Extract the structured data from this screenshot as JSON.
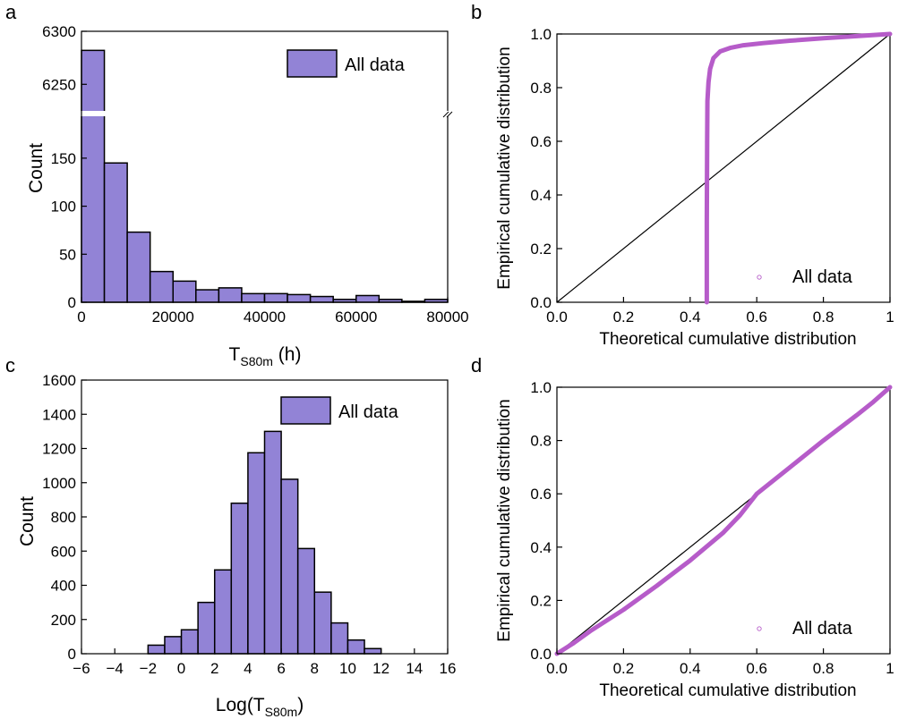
{
  "colors": {
    "bar_fill": "#9283d6",
    "bar_stroke": "#000000",
    "point": "#b65cc9",
    "axis": "#000000"
  },
  "chart_data": [
    {
      "panel": "a",
      "type": "bar",
      "xlabel": "T",
      "xlabel_sub": "S80m",
      "xlabel_unit": " (h)",
      "ylabel": "Count",
      "legend": "All data",
      "legend_position": "top-right",
      "x_ticks": [
        "0",
        "20000",
        "40000",
        "60000",
        "80000"
      ],
      "y_ticks_lower": [
        "0",
        "50",
        "100",
        "150"
      ],
      "y_ticks_upper": [
        "6250",
        "6300"
      ],
      "xlim": [
        0,
        80000
      ],
      "ylim_lower": [
        0,
        175
      ],
      "ylim_upper": [
        6230,
        6300
      ],
      "broken_axis": true,
      "bin_width": 5000,
      "bins_start": [
        0,
        5000,
        10000,
        15000,
        20000,
        25000,
        30000,
        35000,
        40000,
        45000,
        50000,
        55000,
        60000,
        65000,
        70000,
        75000
      ],
      "values": [
        6282,
        145,
        73,
        32,
        22,
        13,
        15,
        9,
        9,
        8,
        6,
        3,
        7,
        3,
        1,
        3
      ]
    },
    {
      "panel": "b",
      "type": "scatter",
      "xlabel": "Theoretical cumulative distribution",
      "ylabel": "Empirical cumulative distribution",
      "legend": "All data",
      "legend_position": "bottom-right",
      "xlim": [
        0,
        1
      ],
      "ylim": [
        0,
        1
      ],
      "x_ticks": [
        "0.0",
        "0.2",
        "0.4",
        "0.6",
        "0.8",
        "1"
      ],
      "y_ticks": [
        "0.0",
        "0.2",
        "0.4",
        "0.6",
        "0.8",
        "1.0"
      ],
      "reference_line": [
        [
          0,
          0
        ],
        [
          1,
          1
        ]
      ],
      "curve": [
        [
          0.45,
          0.0
        ],
        [
          0.45,
          0.3
        ],
        [
          0.451,
          0.6
        ],
        [
          0.452,
          0.75
        ],
        [
          0.455,
          0.82
        ],
        [
          0.46,
          0.87
        ],
        [
          0.47,
          0.91
        ],
        [
          0.49,
          0.935
        ],
        [
          0.52,
          0.948
        ],
        [
          0.56,
          0.958
        ],
        [
          0.62,
          0.966
        ],
        [
          0.7,
          0.975
        ],
        [
          0.8,
          0.984
        ],
        [
          0.9,
          0.992
        ],
        [
          1.0,
          1.0
        ]
      ]
    },
    {
      "panel": "c",
      "type": "bar",
      "xlabel": "Log(T",
      "xlabel_sub": "S80m",
      "xlabel_unit": ")",
      "ylabel": "Count",
      "legend": "All data",
      "legend_position": "top-right",
      "xlim": [
        -6,
        16
      ],
      "ylim": [
        0,
        1600
      ],
      "x_ticks": [
        "−6",
        "−4",
        "−2",
        "0",
        "2",
        "4",
        "6",
        "8",
        "10",
        "12",
        "14",
        "16"
      ],
      "y_ticks": [
        "0",
        "200",
        "400",
        "600",
        "800",
        "1000",
        "1200",
        "1400",
        "1600"
      ],
      "bin_width": 1,
      "bins_start": [
        -2,
        -1,
        0,
        1,
        2,
        3,
        4,
        5,
        6,
        7,
        8,
        9,
        10,
        11
      ],
      "values": [
        50,
        100,
        140,
        300,
        490,
        880,
        1175,
        1300,
        1020,
        615,
        360,
        180,
        80,
        30
      ]
    },
    {
      "panel": "d",
      "type": "scatter",
      "xlabel": "Theoretical cumulative distribution",
      "ylabel": "Empirical cumulative distribution",
      "legend": "All data",
      "legend_position": "bottom-right",
      "xlim": [
        0,
        1
      ],
      "ylim": [
        0,
        1
      ],
      "x_ticks": [
        "0.0",
        "0.2",
        "0.4",
        "0.6",
        "0.8",
        "1"
      ],
      "y_ticks": [
        "0.0",
        "0.2",
        "0.4",
        "0.6",
        "0.8",
        "1.0"
      ],
      "reference_line": [
        [
          0,
          0
        ],
        [
          1,
          1
        ]
      ],
      "curve": [
        [
          0.0,
          0.0
        ],
        [
          0.05,
          0.04
        ],
        [
          0.1,
          0.085
        ],
        [
          0.2,
          0.165
        ],
        [
          0.3,
          0.255
        ],
        [
          0.4,
          0.35
        ],
        [
          0.5,
          0.455
        ],
        [
          0.55,
          0.52
        ],
        [
          0.6,
          0.6
        ],
        [
          0.7,
          0.7
        ],
        [
          0.8,
          0.8
        ],
        [
          0.9,
          0.895
        ],
        [
          0.95,
          0.945
        ],
        [
          1.0,
          1.0
        ]
      ]
    }
  ]
}
